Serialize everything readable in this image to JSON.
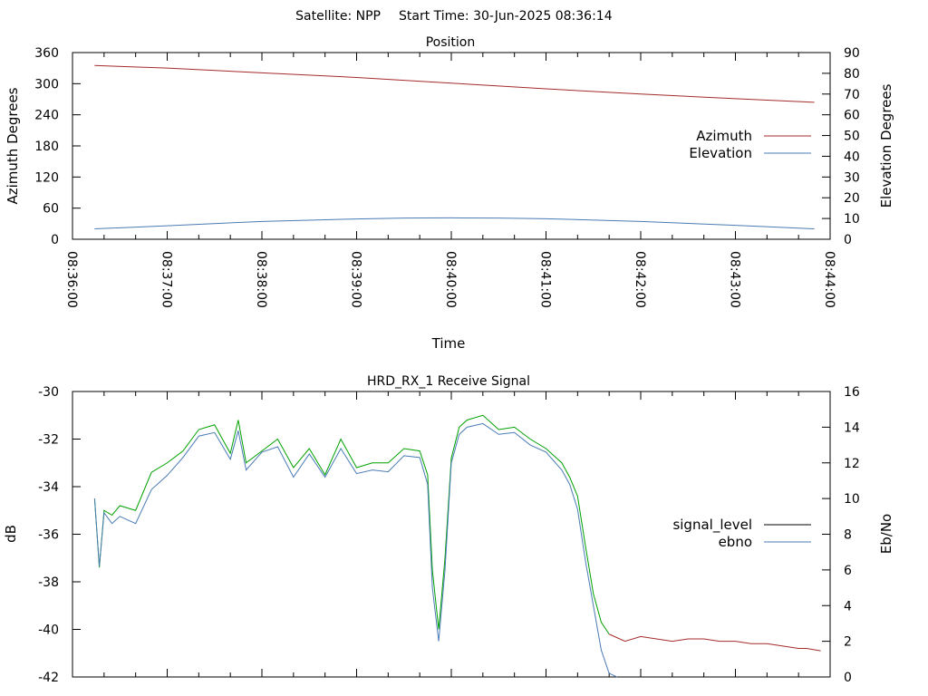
{
  "header": {
    "satellite": "Satellite: NPP",
    "start_time": "Start Time: 30-Jun-2025 08:36:14"
  },
  "chart_data": [
    {
      "type": "line",
      "title": "Position",
      "xlabel": "Time",
      "ylabel": "Azimuth Degrees",
      "y2label": "Elevation Degrees",
      "x_tick_labels": [
        "08:36:00",
        "08:37:00",
        "08:38:00",
        "08:39:00",
        "08:40:00",
        "08:41:00",
        "08:42:00",
        "08:43:00",
        "08:44:00"
      ],
      "xlim": [
        "08:36:00",
        "08:44:00"
      ],
      "ylim": [
        0,
        360
      ],
      "y_ticks": [
        0,
        60,
        120,
        180,
        240,
        300,
        360
      ],
      "y2lim": [
        0,
        90
      ],
      "y2_ticks": [
        0,
        10,
        20,
        30,
        40,
        50,
        60,
        70,
        80,
        90
      ],
      "grid": false,
      "legend_position": "right",
      "series": [
        {
          "name": "Azimuth",
          "axis": "y1",
          "color": "#a52a2a",
          "x": [
            "08:36:14",
            "08:37:00",
            "08:38:00",
            "08:39:00",
            "08:40:00",
            "08:41:00",
            "08:42:00",
            "08:43:00",
            "08:43:50"
          ],
          "values": [
            335,
            330,
            321,
            312,
            301,
            290,
            280,
            271,
            264
          ]
        },
        {
          "name": "Elevation",
          "axis": "y2",
          "color": "#4a7bb5",
          "x": [
            "08:36:14",
            "08:37:00",
            "08:38:00",
            "08:39:00",
            "08:39:30",
            "08:40:00",
            "08:40:30",
            "08:41:00",
            "08:42:00",
            "08:43:00",
            "08:43:50"
          ],
          "values": [
            5,
            6.5,
            8.6,
            9.8,
            10.2,
            10.3,
            10.2,
            9.9,
            8.6,
            6.7,
            5
          ]
        }
      ]
    },
    {
      "type": "line",
      "title": "HRD_RX_1 Receive Signal",
      "xlabel": "",
      "ylabel": "dB",
      "y2label": "Eb/No",
      "xlim": [
        "08:36:00",
        "08:44:00"
      ],
      "ylim": [
        -42,
        -30
      ],
      "y_ticks": [
        -42,
        -40,
        -38,
        -36,
        -34,
        -32,
        -30
      ],
      "y2lim": [
        0,
        16
      ],
      "y2_ticks": [
        0,
        2,
        4,
        6,
        8,
        10,
        12,
        14,
        16
      ],
      "grid": false,
      "legend_position": "right",
      "series": [
        {
          "name": "signal_level",
          "axis": "y1",
          "color": "#00a000",
          "color_after_lock_loss": "#a52a2a",
          "legend_color": "#000000",
          "x": [
            "08:36:14",
            "08:36:17",
            "08:36:20",
            "08:36:25",
            "08:36:30",
            "08:36:40",
            "08:36:50",
            "08:37:00",
            "08:37:10",
            "08:37:20",
            "08:37:30",
            "08:37:40",
            "08:37:45",
            "08:37:50",
            "08:38:00",
            "08:38:10",
            "08:38:20",
            "08:38:30",
            "08:38:40",
            "08:38:50",
            "08:39:00",
            "08:39:10",
            "08:39:20",
            "08:39:30",
            "08:39:40",
            "08:39:45",
            "08:39:48",
            "08:39:52",
            "08:39:56",
            "08:40:00",
            "08:40:05",
            "08:40:10",
            "08:40:20",
            "08:40:30",
            "08:40:40",
            "08:40:50",
            "08:41:00",
            "08:41:10",
            "08:41:15",
            "08:41:20",
            "08:41:25",
            "08:41:30",
            "08:41:35",
            "08:41:40",
            "08:41:50",
            "08:42:00",
            "08:42:10",
            "08:42:20",
            "08:42:30",
            "08:42:40",
            "08:42:50",
            "08:43:00",
            "08:43:10",
            "08:43:20",
            "08:43:30",
            "08:43:40",
            "08:43:45",
            "08:43:54"
          ],
          "values": [
            -34.5,
            -37.4,
            -35.0,
            -35.2,
            -34.8,
            -35.0,
            -33.4,
            -33.0,
            -32.5,
            -31.6,
            -31.4,
            -32.6,
            -31.2,
            -33.0,
            -32.5,
            -32.0,
            -33.2,
            -32.4,
            -33.5,
            -32.0,
            -33.2,
            -33.0,
            -33.0,
            -32.4,
            -32.5,
            -33.5,
            -37.5,
            -40.0,
            -37.0,
            -32.8,
            -31.5,
            -31.2,
            -31.0,
            -31.6,
            -31.5,
            -32.0,
            -32.4,
            -33.0,
            -33.6,
            -34.4,
            -36.5,
            -38.5,
            -39.7,
            -40.2,
            -40.5,
            -40.3,
            -40.4,
            -40.5,
            -40.4,
            -40.4,
            -40.5,
            -40.5,
            -40.6,
            -40.6,
            -40.7,
            -40.8,
            -40.8,
            -40.9
          ]
        },
        {
          "name": "ebno",
          "axis": "y2",
          "color": "#4a7bb5",
          "x": [
            "08:36:14",
            "08:36:17",
            "08:36:20",
            "08:36:25",
            "08:36:30",
            "08:36:40",
            "08:36:50",
            "08:37:00",
            "08:37:10",
            "08:37:20",
            "08:37:30",
            "08:37:40",
            "08:37:45",
            "08:37:50",
            "08:38:00",
            "08:38:10",
            "08:38:20",
            "08:38:30",
            "08:38:40",
            "08:38:50",
            "08:39:00",
            "08:39:10",
            "08:39:20",
            "08:39:30",
            "08:39:40",
            "08:39:45",
            "08:39:48",
            "08:39:52",
            "08:39:56",
            "08:40:00",
            "08:40:05",
            "08:40:10",
            "08:40:20",
            "08:40:30",
            "08:40:40",
            "08:40:50",
            "08:41:00",
            "08:41:10",
            "08:41:15",
            "08:41:20",
            "08:41:25",
            "08:41:30",
            "08:41:35",
            "08:41:40",
            "08:41:45"
          ],
          "values": [
            10.0,
            6.2,
            9.2,
            8.6,
            9.0,
            8.6,
            10.5,
            11.3,
            12.3,
            13.5,
            13.7,
            12.2,
            13.8,
            11.6,
            12.6,
            12.9,
            11.2,
            12.5,
            11.2,
            12.8,
            11.4,
            11.6,
            11.5,
            12.4,
            12.3,
            10.8,
            5.0,
            2.0,
            6.0,
            12.0,
            13.6,
            14.0,
            14.2,
            13.6,
            13.7,
            13.0,
            12.6,
            11.6,
            10.8,
            9.4,
            6.5,
            4.0,
            1.5,
            0.2,
            0.0
          ]
        }
      ]
    }
  ]
}
